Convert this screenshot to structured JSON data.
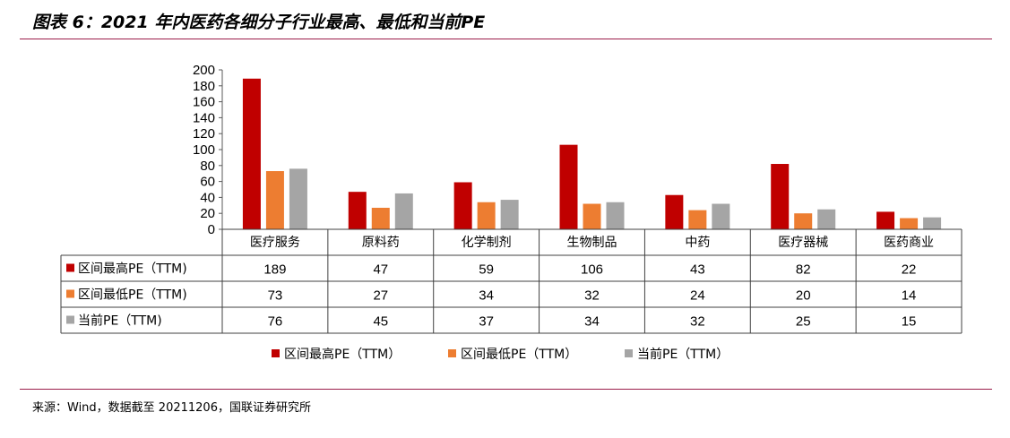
{
  "page": {
    "title": "图表 6：2021 年内医药各细分子行业最高、最低和当前PE",
    "source": "来源：Wind，数据截至 20211206，国联证券研究所"
  },
  "chart_data": {
    "type": "bar",
    "categories": [
      "医疗服务",
      "原料药",
      "化学制剂",
      "生物制品",
      "中药",
      "医疗器械",
      "医药商业"
    ],
    "series": [
      {
        "name": "区间最高PE（TTM)",
        "color": "#c00000",
        "values": [
          189,
          47,
          59,
          106,
          43,
          82,
          22
        ]
      },
      {
        "name": "区间最低PE（TTM)",
        "color": "#ed7d31",
        "values": [
          73,
          27,
          34,
          32,
          24,
          20,
          14
        ]
      },
      {
        "name": "当前PE（TTM)",
        "color": "#a5a5a5",
        "values": [
          76,
          45,
          37,
          34,
          32,
          25,
          15
        ]
      }
    ],
    "legend_labels": [
      "区间最高PE（TTM）",
      "区间最低PE（TTM）",
      "当前PE（TTM）"
    ],
    "ylim": [
      0,
      200
    ],
    "yticks": [
      0,
      20,
      40,
      60,
      80,
      100,
      120,
      140,
      160,
      180,
      200
    ],
    "grid": false,
    "legend": "bottom",
    "data_table": true
  }
}
